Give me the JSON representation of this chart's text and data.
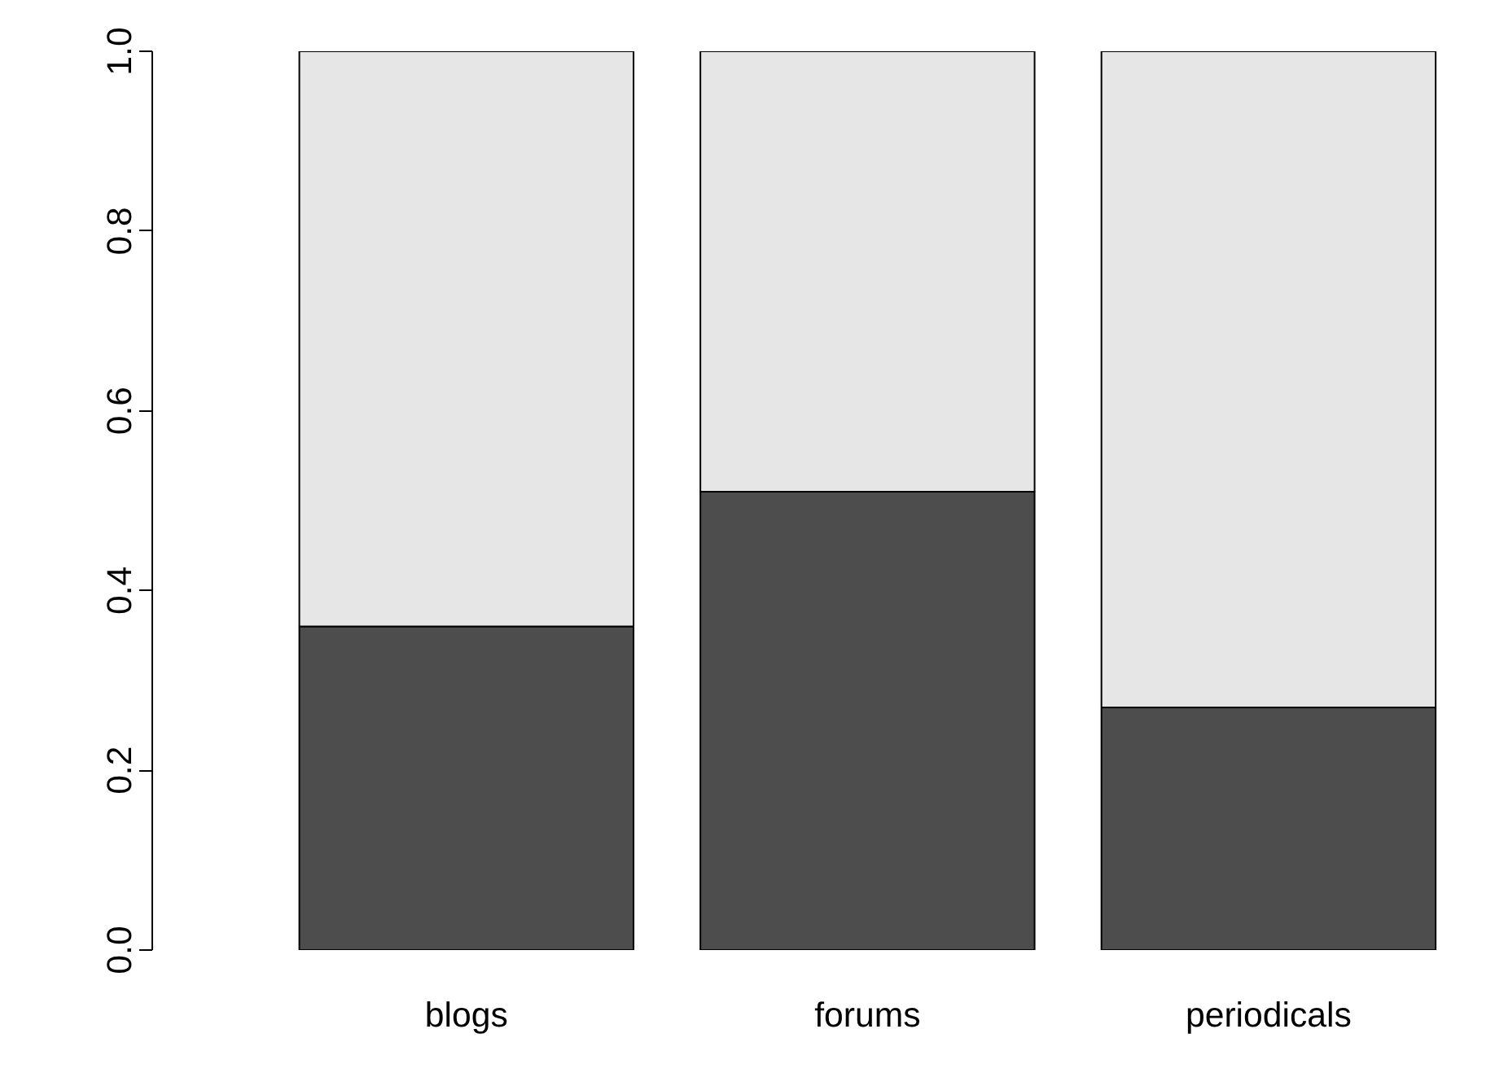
{
  "chart_data": {
    "type": "bar",
    "stacked": true,
    "categories": [
      "blogs",
      "forums",
      "periodicals"
    ],
    "series": [
      {
        "color": "#4d4d4d",
        "values": [
          0.36,
          0.51,
          0.27
        ]
      },
      {
        "color": "#e6e6e6",
        "values": [
          0.64,
          0.49,
          0.73
        ]
      }
    ],
    "ylim": [
      0,
      1
    ],
    "yticks": [
      {
        "value": 0,
        "label": "0.0"
      },
      {
        "value": 0.2,
        "label": "0.2"
      },
      {
        "value": 0.4,
        "label": "0.4"
      },
      {
        "value": 0.6,
        "label": "0.6"
      },
      {
        "value": 0.8,
        "label": "0.8"
      },
      {
        "value": 1,
        "label": "1.0"
      }
    ],
    "grid": false
  }
}
